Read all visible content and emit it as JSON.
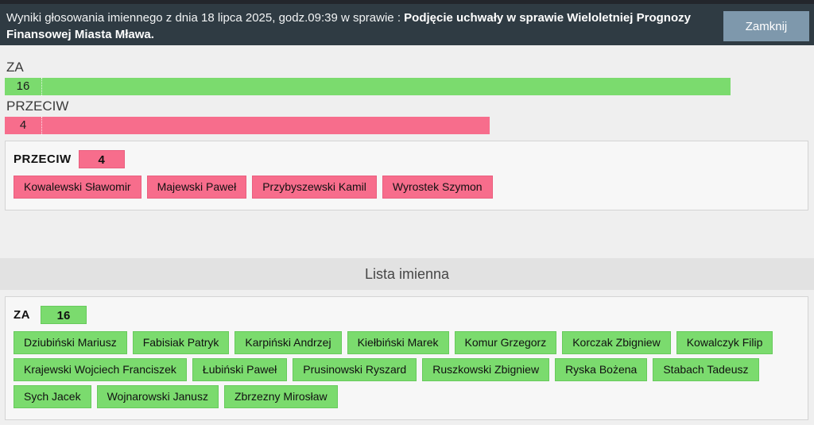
{
  "header": {
    "text_normal": "Wyniki głosowania imiennego z dnia 18 lipca 2025, godz.09:39 w sprawie : ",
    "text_bold": "Podjęcie uchwały w sprawie Wieloletniej Prognozy Finansowej Miasta Mława.",
    "close_label": "Zamknij"
  },
  "chart_data": {
    "type": "bar",
    "orientation": "horizontal",
    "categories": [
      "ZA",
      "PRZECIW"
    ],
    "values": [
      16,
      4
    ],
    "bar_colors": [
      "#7bdb6e",
      "#f76d8c"
    ],
    "title": "",
    "xlabel": "",
    "ylabel": ""
  },
  "summary": {
    "za_label": "ZA",
    "za_count": "16",
    "przeciw_label": "PRZECIW",
    "przeciw_count": "4"
  },
  "przeciw_panel": {
    "label": "PRZECIW",
    "count": "4",
    "members": [
      "Kowalewski Sławomir",
      "Majewski Paweł",
      "Przybyszewski Kamil",
      "Wyrostek Szymon"
    ]
  },
  "section": {
    "title": "Lista imienna"
  },
  "za_panel": {
    "label": "ZA",
    "count": "16",
    "members": [
      "Dziubiński Mariusz",
      "Fabisiak Patryk",
      "Karpiński Andrzej",
      "Kiełbiński Marek",
      "Komur Grzegorz",
      "Korczak Zbigniew",
      "Kowalczyk Filip",
      "Krajewski Wojciech Franciszek",
      "Łubiński Paweł",
      "Prusinowski Ryszard",
      "Ruszkowski Zbigniew",
      "Ryska Bożena",
      "Stabach Tadeusz",
      "Sych Jacek",
      "Wojnarowski Janusz",
      "Zbrzezny Mirosław"
    ]
  },
  "colors": {
    "header_bg": "#2f3b43",
    "close_button_bg": "#7e98ac",
    "za_green": "#7bdb6e",
    "przeciw_pink": "#f76d8c",
    "page_bg": "#efefef",
    "band_bg": "#e2e2e2",
    "panel_bg": "#f7f7f7"
  }
}
